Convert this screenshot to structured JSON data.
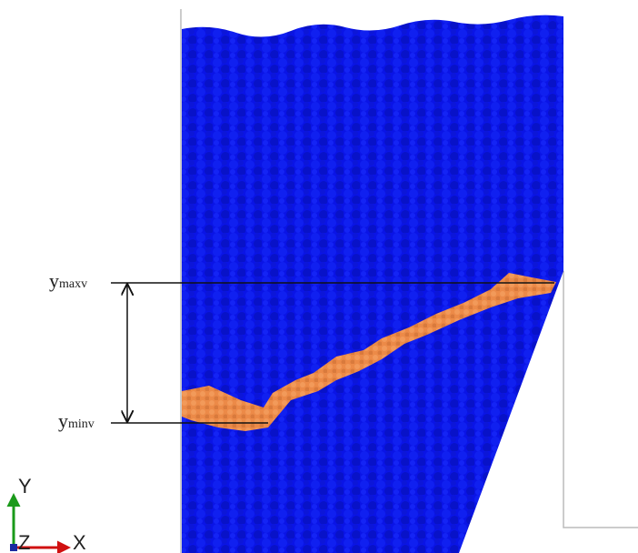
{
  "labels": {
    "y_max": {
      "base": "y",
      "sub": "maxv"
    },
    "y_min": {
      "base": "y",
      "sub": "minv"
    }
  },
  "axes": {
    "y": "Y",
    "z": "Z",
    "x": "X"
  }
}
